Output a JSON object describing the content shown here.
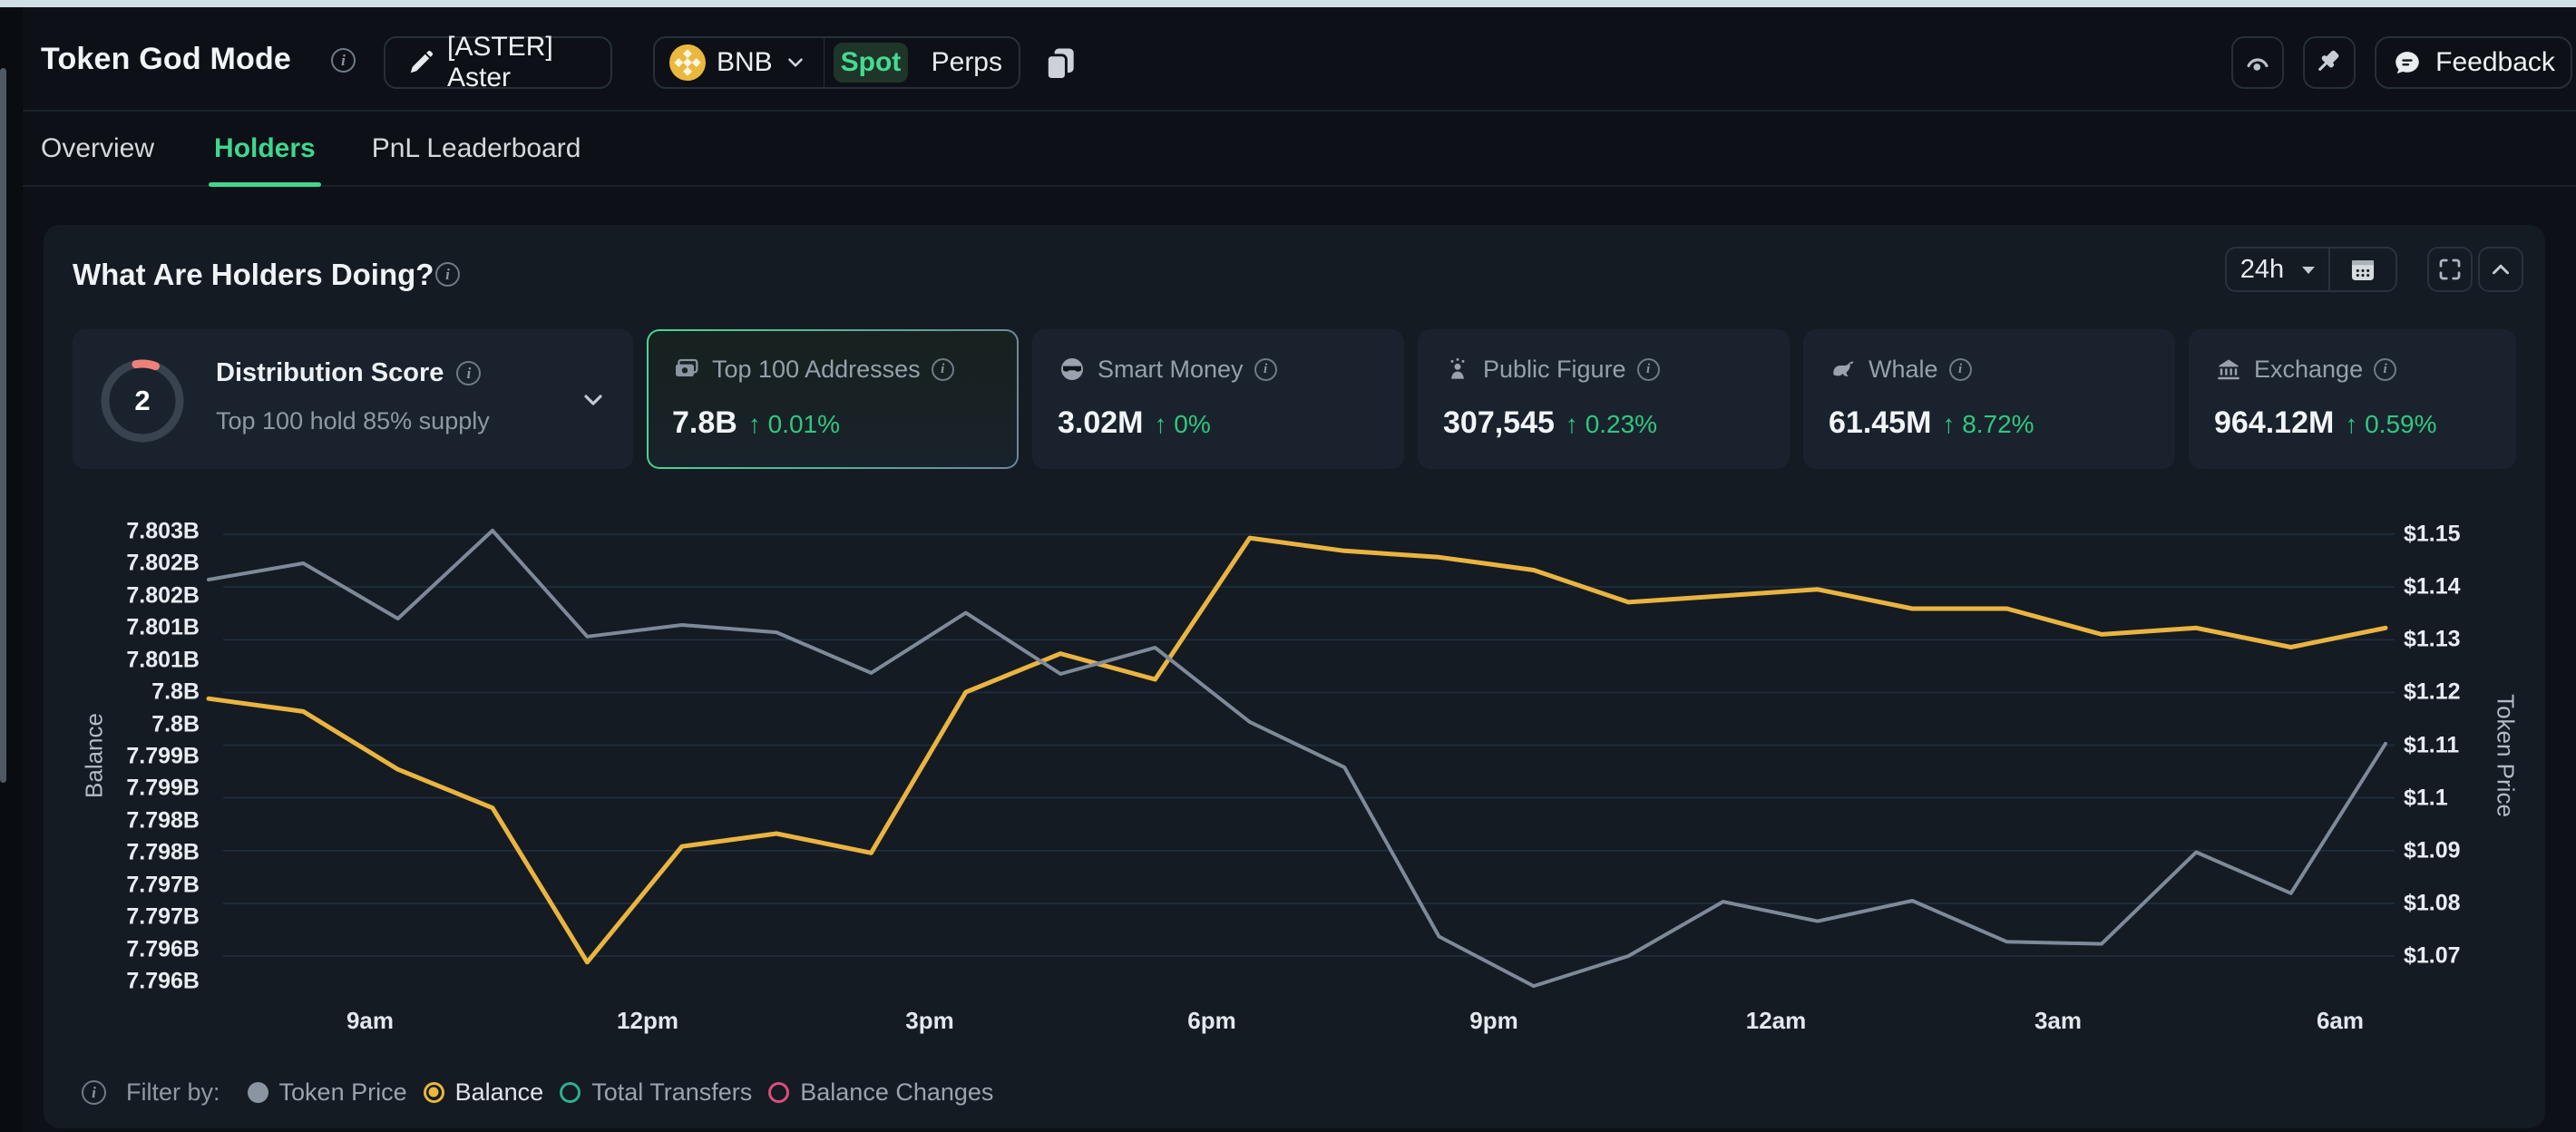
{
  "icons": {
    "up_arrow": "↑"
  },
  "header": {
    "title": "Token God Mode",
    "token_button": "[ASTER] Aster",
    "chain": "BNB",
    "spot": "Spot",
    "perps": "Perps",
    "feedback": "Feedback"
  },
  "tabs": {
    "items": [
      "Overview",
      "Holders",
      "PnL Leaderboard"
    ],
    "active": "Holders"
  },
  "panel": {
    "title": "What Are Holders Doing?",
    "timeframe": "24h"
  },
  "distribution": {
    "score": "2",
    "label": "Distribution Score",
    "subtitle": "Top 100 hold 85% supply",
    "accent_color": "#ed8179"
  },
  "stat_cards": [
    {
      "label": "Top 100 Addresses",
      "value": "7.8B",
      "change": "0.01%",
      "icon": "banknote-icon",
      "selected": true
    },
    {
      "label": "Smart Money",
      "value": "3.02M",
      "change": "0%",
      "icon": "smart-money-icon",
      "selected": false
    },
    {
      "label": "Public Figure",
      "value": "307,545",
      "change": "0.23%",
      "icon": "public-figure-icon",
      "selected": false
    },
    {
      "label": "Whale",
      "value": "61.45M",
      "change": "8.72%",
      "icon": "whale-icon",
      "selected": false
    },
    {
      "label": "Exchange",
      "value": "964.12M",
      "change": "0.59%",
      "icon": "exchange-icon",
      "selected": false
    }
  ],
  "chart_data": {
    "type": "line",
    "x_ticks": [
      "9am",
      "12pm",
      "3pm",
      "6pm",
      "9pm",
      "12am",
      "3am",
      "6am"
    ],
    "left_axis": {
      "label": "Balance",
      "max": 7.803,
      "step": 0.0005,
      "ticks": [
        "7.803B",
        "7.802B",
        "7.802B",
        "7.801B",
        "7.801B",
        "7.8B",
        "7.8B",
        "7.799B",
        "7.799B",
        "7.798B",
        "7.798B",
        "7.797B",
        "7.797B",
        "7.796B",
        "7.796B"
      ]
    },
    "right_axis": {
      "label": "Token Price",
      "max": 1.15,
      "step": 0.01,
      "ticks": [
        "$1.15",
        "$1.14",
        "$1.13",
        "$1.12",
        "$1.11",
        "$1.1",
        "$1.09",
        "$1.08",
        "$1.07"
      ]
    },
    "grid": true,
    "series": [
      {
        "name": "Balance",
        "axis": "left",
        "color": "#eab440",
        "width": 5,
        "values": [
          7.8004,
          7.8002,
          7.7993,
          7.7987,
          7.7963,
          7.7981,
          7.7983,
          7.798,
          7.8005,
          7.8011,
          7.8007,
          7.8029,
          7.8027,
          7.8026,
          7.8024,
          7.8019,
          7.802,
          7.8021,
          7.8018,
          7.8018,
          7.8014,
          7.8015,
          7.8012,
          7.8015
        ]
      },
      {
        "name": "Token Price",
        "axis": "right",
        "color": "#7e8999",
        "width": 4,
        "values": [
          1.1414,
          1.1445,
          1.134,
          1.1507,
          1.1306,
          1.1328,
          1.1314,
          1.1237,
          1.1351,
          1.1235,
          1.1285,
          1.1144,
          1.1058,
          1.0737,
          1.0643,
          1.07,
          1.0803,
          1.0766,
          1.0805,
          1.0727,
          1.0723,
          1.0897,
          1.0819,
          1.1103
        ]
      }
    ],
    "grid_color": "#2a4159"
  },
  "filter": {
    "label": "Filter by:",
    "options": [
      {
        "label": "Token Price",
        "color": "#8a95a1",
        "style": "filled"
      },
      {
        "label": "Balance",
        "color": "#e9b63f",
        "style": "selected"
      },
      {
        "label": "Total Transfers",
        "color": "#2fae8d",
        "style": "ring"
      },
      {
        "label": "Balance Changes",
        "color": "#dc4d7b",
        "style": "ring"
      }
    ]
  }
}
